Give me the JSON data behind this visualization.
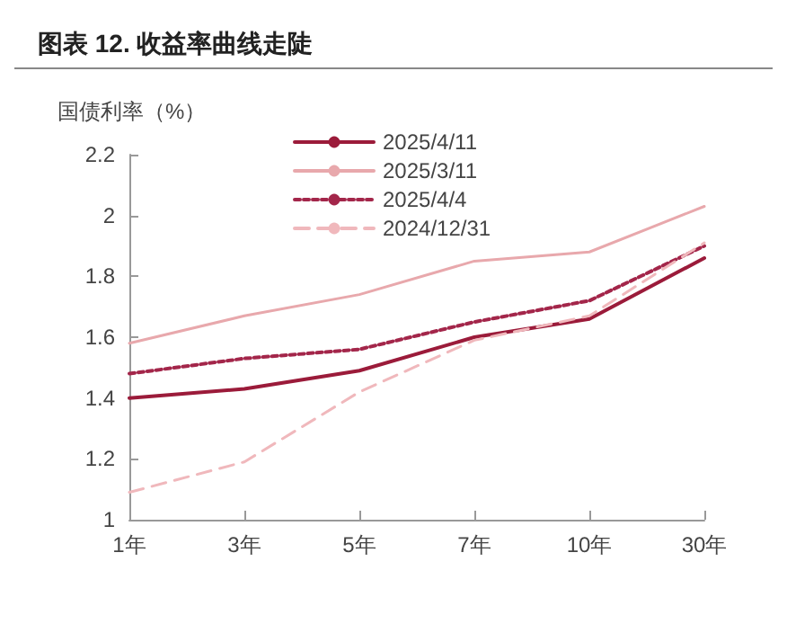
{
  "chart_data": {
    "type": "line",
    "title": "图表 12. 收益率曲线走陡",
    "ylabel": "国债利率（%）",
    "categories": [
      "1年",
      "3年",
      "5年",
      "7年",
      "10年",
      "30年"
    ],
    "series": [
      {
        "name": "2025/4/11",
        "color": "#9b1b3a",
        "line_style": "solid",
        "values": [
          1.4,
          1.43,
          1.49,
          1.6,
          1.66,
          1.86
        ]
      },
      {
        "name": "2025/3/11",
        "color": "#e8a8ac",
        "line_style": "solid",
        "values": [
          1.58,
          1.67,
          1.74,
          1.85,
          1.88,
          2.03
        ]
      },
      {
        "name": "2025/4/4",
        "color": "#a3264a",
        "line_style": "dotted",
        "values": [
          1.48,
          1.53,
          1.56,
          1.65,
          1.72,
          1.9
        ]
      },
      {
        "name": "2024/12/31",
        "color": "#f0b8bc",
        "line_style": "dashed",
        "values": [
          1.09,
          1.19,
          1.42,
          1.59,
          1.67,
          1.91
        ]
      }
    ],
    "ylim": [
      1,
      2.2
    ],
    "yticks": [
      1,
      1.2,
      1.4,
      1.6,
      1.8,
      2,
      2.2
    ],
    "grid": false,
    "legend": "top",
    "marker": "none"
  }
}
